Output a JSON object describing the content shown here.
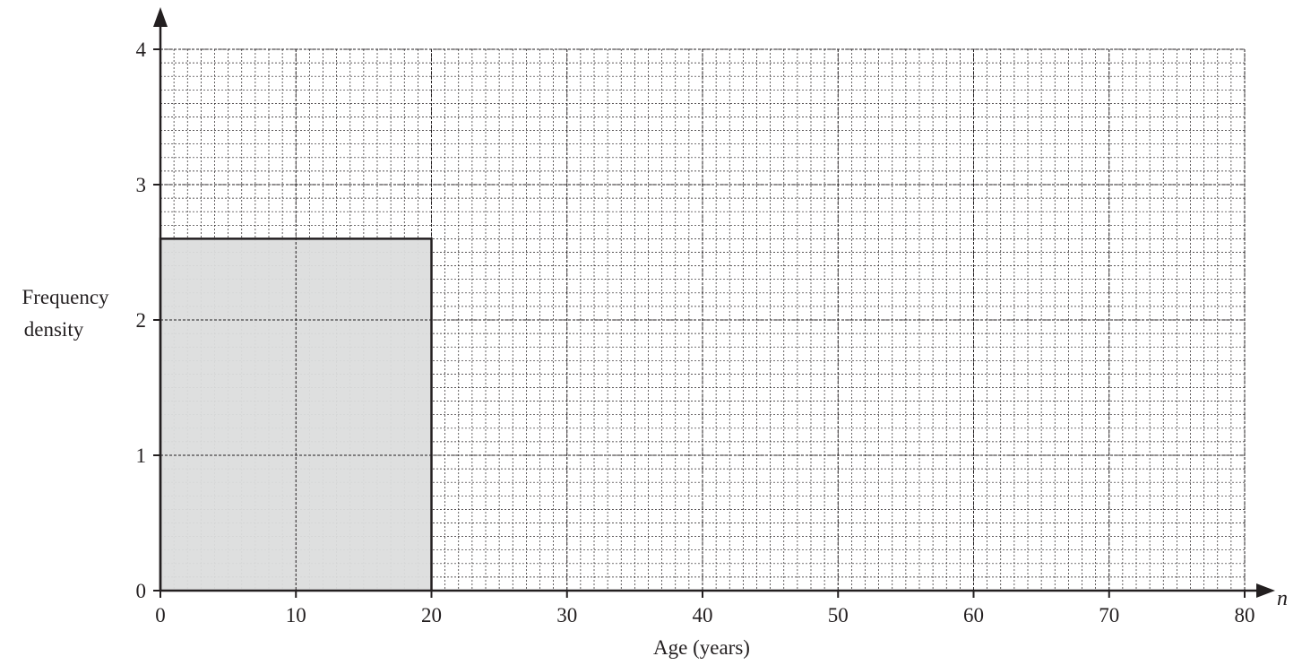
{
  "chart_data": {
    "type": "bar",
    "subtype": "histogram",
    "title": "",
    "xlabel": "Age (years)",
    "ylabel": [
      "Frequency",
      "density"
    ],
    "x_variable": "n",
    "xlim": [
      0,
      80
    ],
    "ylim": [
      0,
      4
    ],
    "x_ticks": [
      0,
      10,
      20,
      30,
      40,
      50,
      60,
      70,
      80
    ],
    "y_ticks": [
      0,
      1,
      2,
      3,
      4
    ],
    "grid": {
      "on": true,
      "x_major": 10,
      "y_major": 1,
      "x_minor": 1,
      "y_minor": 0.1
    },
    "bars": [
      {
        "x_start": 0,
        "x_end": 20,
        "value": 2.6
      }
    ],
    "colors": {
      "bar_fill": "#dcdddd",
      "ink": "#231f20"
    }
  }
}
